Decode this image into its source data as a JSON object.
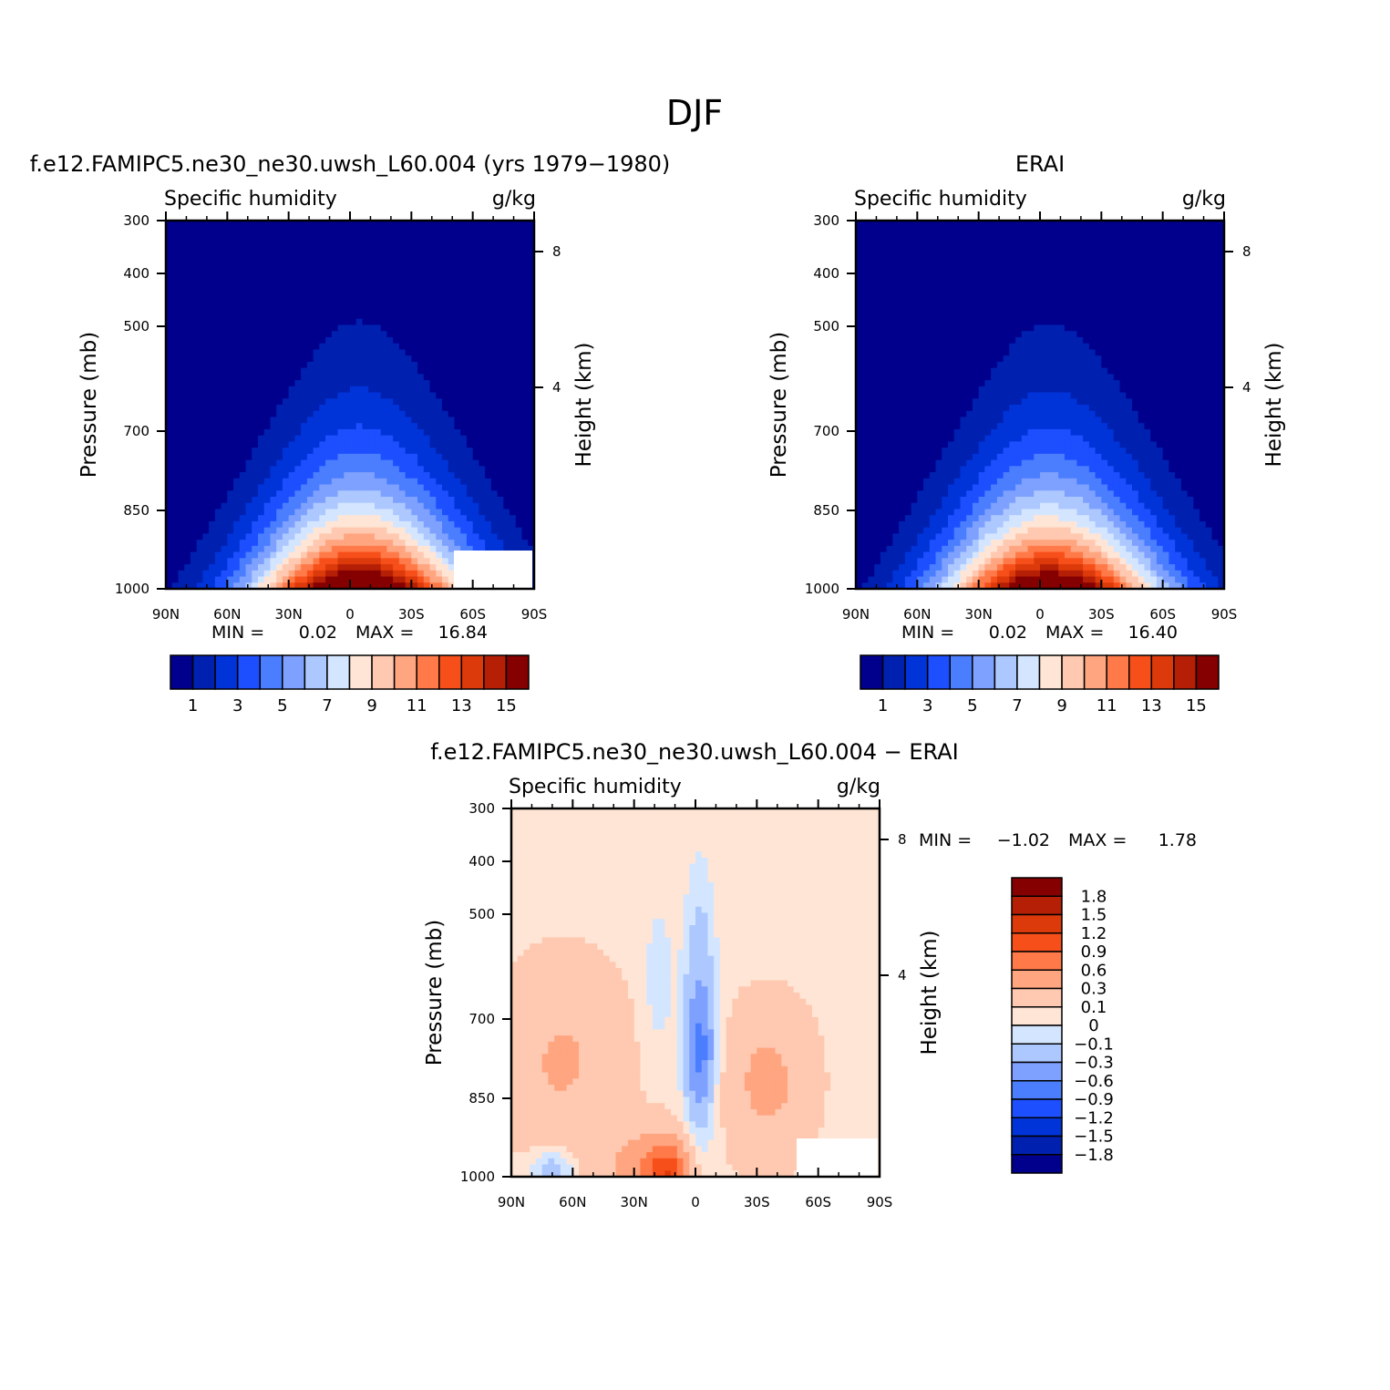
{
  "figure": {
    "title": "DJF"
  },
  "chart_data": [
    {
      "type": "heatmap",
      "title": "f.e12.FAMIPC5.ne30_ne30.uwsh_L60.004 (yrs 1979-1980)",
      "left_label": "Specific humidity",
      "right_label": "g/kg",
      "x_ticks": [
        "90N",
        "60N",
        "30N",
        "0",
        "30S",
        "60S",
        "90S"
      ],
      "xlim": [
        90,
        -90
      ],
      "ylabel": "Pressure (mb)",
      "y_ticks": [
        "300",
        "400",
        "500",
        "700",
        "850",
        "1000"
      ],
      "ylim": [
        1000,
        300
      ],
      "ylabel_right": "Height (km)",
      "y_right_ticks": [
        "8",
        "4"
      ],
      "min_label": "MIN =",
      "min_value": "0.02",
      "max_label": "MAX =",
      "max_value": "16.84",
      "field_peak": 16.84,
      "colorbar": {
        "levels": [
          1,
          2,
          3,
          4,
          5,
          6,
          7,
          8,
          9,
          10,
          11,
          12,
          13,
          14,
          15
        ],
        "tick_labels": [
          "1",
          "3",
          "5",
          "7",
          "9",
          "11",
          "13",
          "15"
        ],
        "colors": [
          "#00008c",
          "#0020b0",
          "#0034d8",
          "#1d4fff",
          "#4a7eff",
          "#7ea0ff",
          "#adc8ff",
          "#d4e6ff",
          "#ffe5d5",
          "#ffc8b0",
          "#ffa580",
          "#ff7a48",
          "#f74f1a",
          "#dd3a0c",
          "#b51f06",
          "#850000"
        ]
      }
    },
    {
      "type": "heatmap",
      "title": "ERAI",
      "left_label": "Specific humidity",
      "right_label": "g/kg",
      "x_ticks": [
        "90N",
        "60N",
        "30N",
        "0",
        "30S",
        "60S",
        "90S"
      ],
      "xlim": [
        90,
        -90
      ],
      "ylabel": "Pressure (mb)",
      "y_ticks": [
        "300",
        "400",
        "500",
        "700",
        "850",
        "1000"
      ],
      "ylim": [
        1000,
        300
      ],
      "ylabel_right": "Height (km)",
      "y_right_ticks": [
        "8",
        "4"
      ],
      "min_label": "MIN =",
      "min_value": "0.02",
      "max_label": "MAX =",
      "max_value": "16.40",
      "field_peak": 16.4,
      "colorbar": {
        "levels": [
          1,
          2,
          3,
          4,
          5,
          6,
          7,
          8,
          9,
          10,
          11,
          12,
          13,
          14,
          15
        ],
        "tick_labels": [
          "1",
          "3",
          "5",
          "7",
          "9",
          "11",
          "13",
          "15"
        ],
        "colors": [
          "#00008c",
          "#0020b0",
          "#0034d8",
          "#1d4fff",
          "#4a7eff",
          "#7ea0ff",
          "#adc8ff",
          "#d4e6ff",
          "#ffe5d5",
          "#ffc8b0",
          "#ffa580",
          "#ff7a48",
          "#f74f1a",
          "#dd3a0c",
          "#b51f06",
          "#850000"
        ]
      }
    },
    {
      "type": "heatmap",
      "title": "f.e12.FAMIPC5.ne30_ne30.uwsh_L60.004 - ERAI",
      "left_label": "Specific humidity",
      "right_label": "g/kg",
      "x_ticks": [
        "90N",
        "60N",
        "30N",
        "0",
        "30S",
        "60S",
        "90S"
      ],
      "xlim": [
        90,
        -90
      ],
      "ylabel": "Pressure (mb)",
      "y_ticks": [
        "300",
        "400",
        "500",
        "700",
        "850",
        "1000"
      ],
      "ylim": [
        1000,
        300
      ],
      "ylabel_right": "Height (km)",
      "y_right_ticks": [
        "8",
        "4"
      ],
      "min_label": "MIN =",
      "min_value": "-1.02",
      "max_label": "MAX =",
      "max_value": "1.78",
      "colorbar": {
        "levels": [
          -1.8,
          -1.5,
          -1.2,
          -0.9,
          -0.6,
          -0.3,
          -0.1,
          0,
          0.1,
          0.3,
          0.6,
          0.9,
          1.2,
          1.5,
          1.8
        ],
        "tick_labels": [
          "1.8",
          "1.5",
          "1.2",
          "0.9",
          "0.6",
          "0.3",
          "0.1",
          "0",
          "-0.1",
          "-0.3",
          "-0.6",
          "-0.9",
          "-1.2",
          "-1.5",
          "-1.8"
        ],
        "colors": [
          "#00008c",
          "#0020b0",
          "#0034d8",
          "#1d4fff",
          "#4a7eff",
          "#7ea0ff",
          "#adc8ff",
          "#d4e6ff",
          "#ffe5d5",
          "#ffc8b0",
          "#ffa580",
          "#ff7a48",
          "#f74f1a",
          "#dd3a0c",
          "#b51f06",
          "#850000"
        ]
      }
    }
  ]
}
